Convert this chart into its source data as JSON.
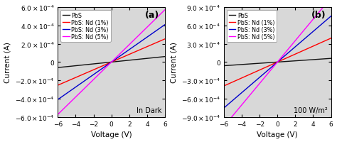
{
  "subplot_a": {
    "label": "(a)",
    "annotation": "In Dark",
    "xlim": [
      -6,
      6
    ],
    "ylim": [
      -0.0006,
      0.0006
    ],
    "yticks": [
      -0.0006,
      -0.0004,
      -0.0002,
      0,
      0.0002,
      0.0004,
      0.0006
    ],
    "ytick_labels": [
      "-6.0x10-4",
      "-4.0x10-4",
      "-2.0x10-4",
      "0",
      "2.0x10-4",
      "4.0x10-4",
      "6.0x10-4"
    ],
    "xticks": [
      -6,
      -4,
      -2,
      0,
      2,
      4,
      6
    ],
    "xlabel": "Voltage (V)",
    "ylabel": "Current (A)",
    "lines": [
      {
        "label": "PbS",
        "color": "#111111",
        "slope": 1e-05
      },
      {
        "label": "PbS: Nd (1%)",
        "color": "#ff0000",
        "slope": 4.2e-05
      },
      {
        "label": "PbS: Nd (3%)",
        "color": "#0000cc",
        "slope": 6.8e-05
      },
      {
        "label": "PbS: Nd (5%)",
        "color": "#ff00ff",
        "slope": 9.5e-05
      }
    ]
  },
  "subplot_b": {
    "label": "(b)",
    "annotation": "100 W/m²",
    "xlim": [
      -6,
      6
    ],
    "ylim": [
      -0.0009,
      0.0009
    ],
    "yticks": [
      -0.0009,
      -0.0006,
      -0.0003,
      0,
      0.0003,
      0.0006,
      0.0009
    ],
    "ytick_labels": [
      "-9.0x10-4",
      "-6.0x10-4",
      "-3.0x10-4",
      "0",
      "3.0x10-4",
      "6.0x10-4",
      "9.0x10-4"
    ],
    "xticks": [
      -6,
      -4,
      -2,
      0,
      2,
      4,
      6
    ],
    "xlabel": "Voltage (V)",
    "ylabel": "Current (A)",
    "lines": [
      {
        "label": "PbS",
        "color": "#111111",
        "slope": 1e-05
      },
      {
        "label": "PbS: Nd (1%)",
        "color": "#ff0000",
        "slope": 6.5e-05
      },
      {
        "label": "PbS: Nd (3%)",
        "color": "#0000cc",
        "slope": 0.000125
      },
      {
        "label": "PbS: Nd (5%)",
        "color": "#ff00ff",
        "slope": 0.000175
      }
    ]
  },
  "bg_color": "#d8d8d8",
  "fig_facecolor": "#ffffff",
  "legend_fontsize": 5.8,
  "axis_label_fontsize": 7.5,
  "tick_fontsize": 6.5,
  "annot_fontsize": 7,
  "label_fontsize": 9
}
